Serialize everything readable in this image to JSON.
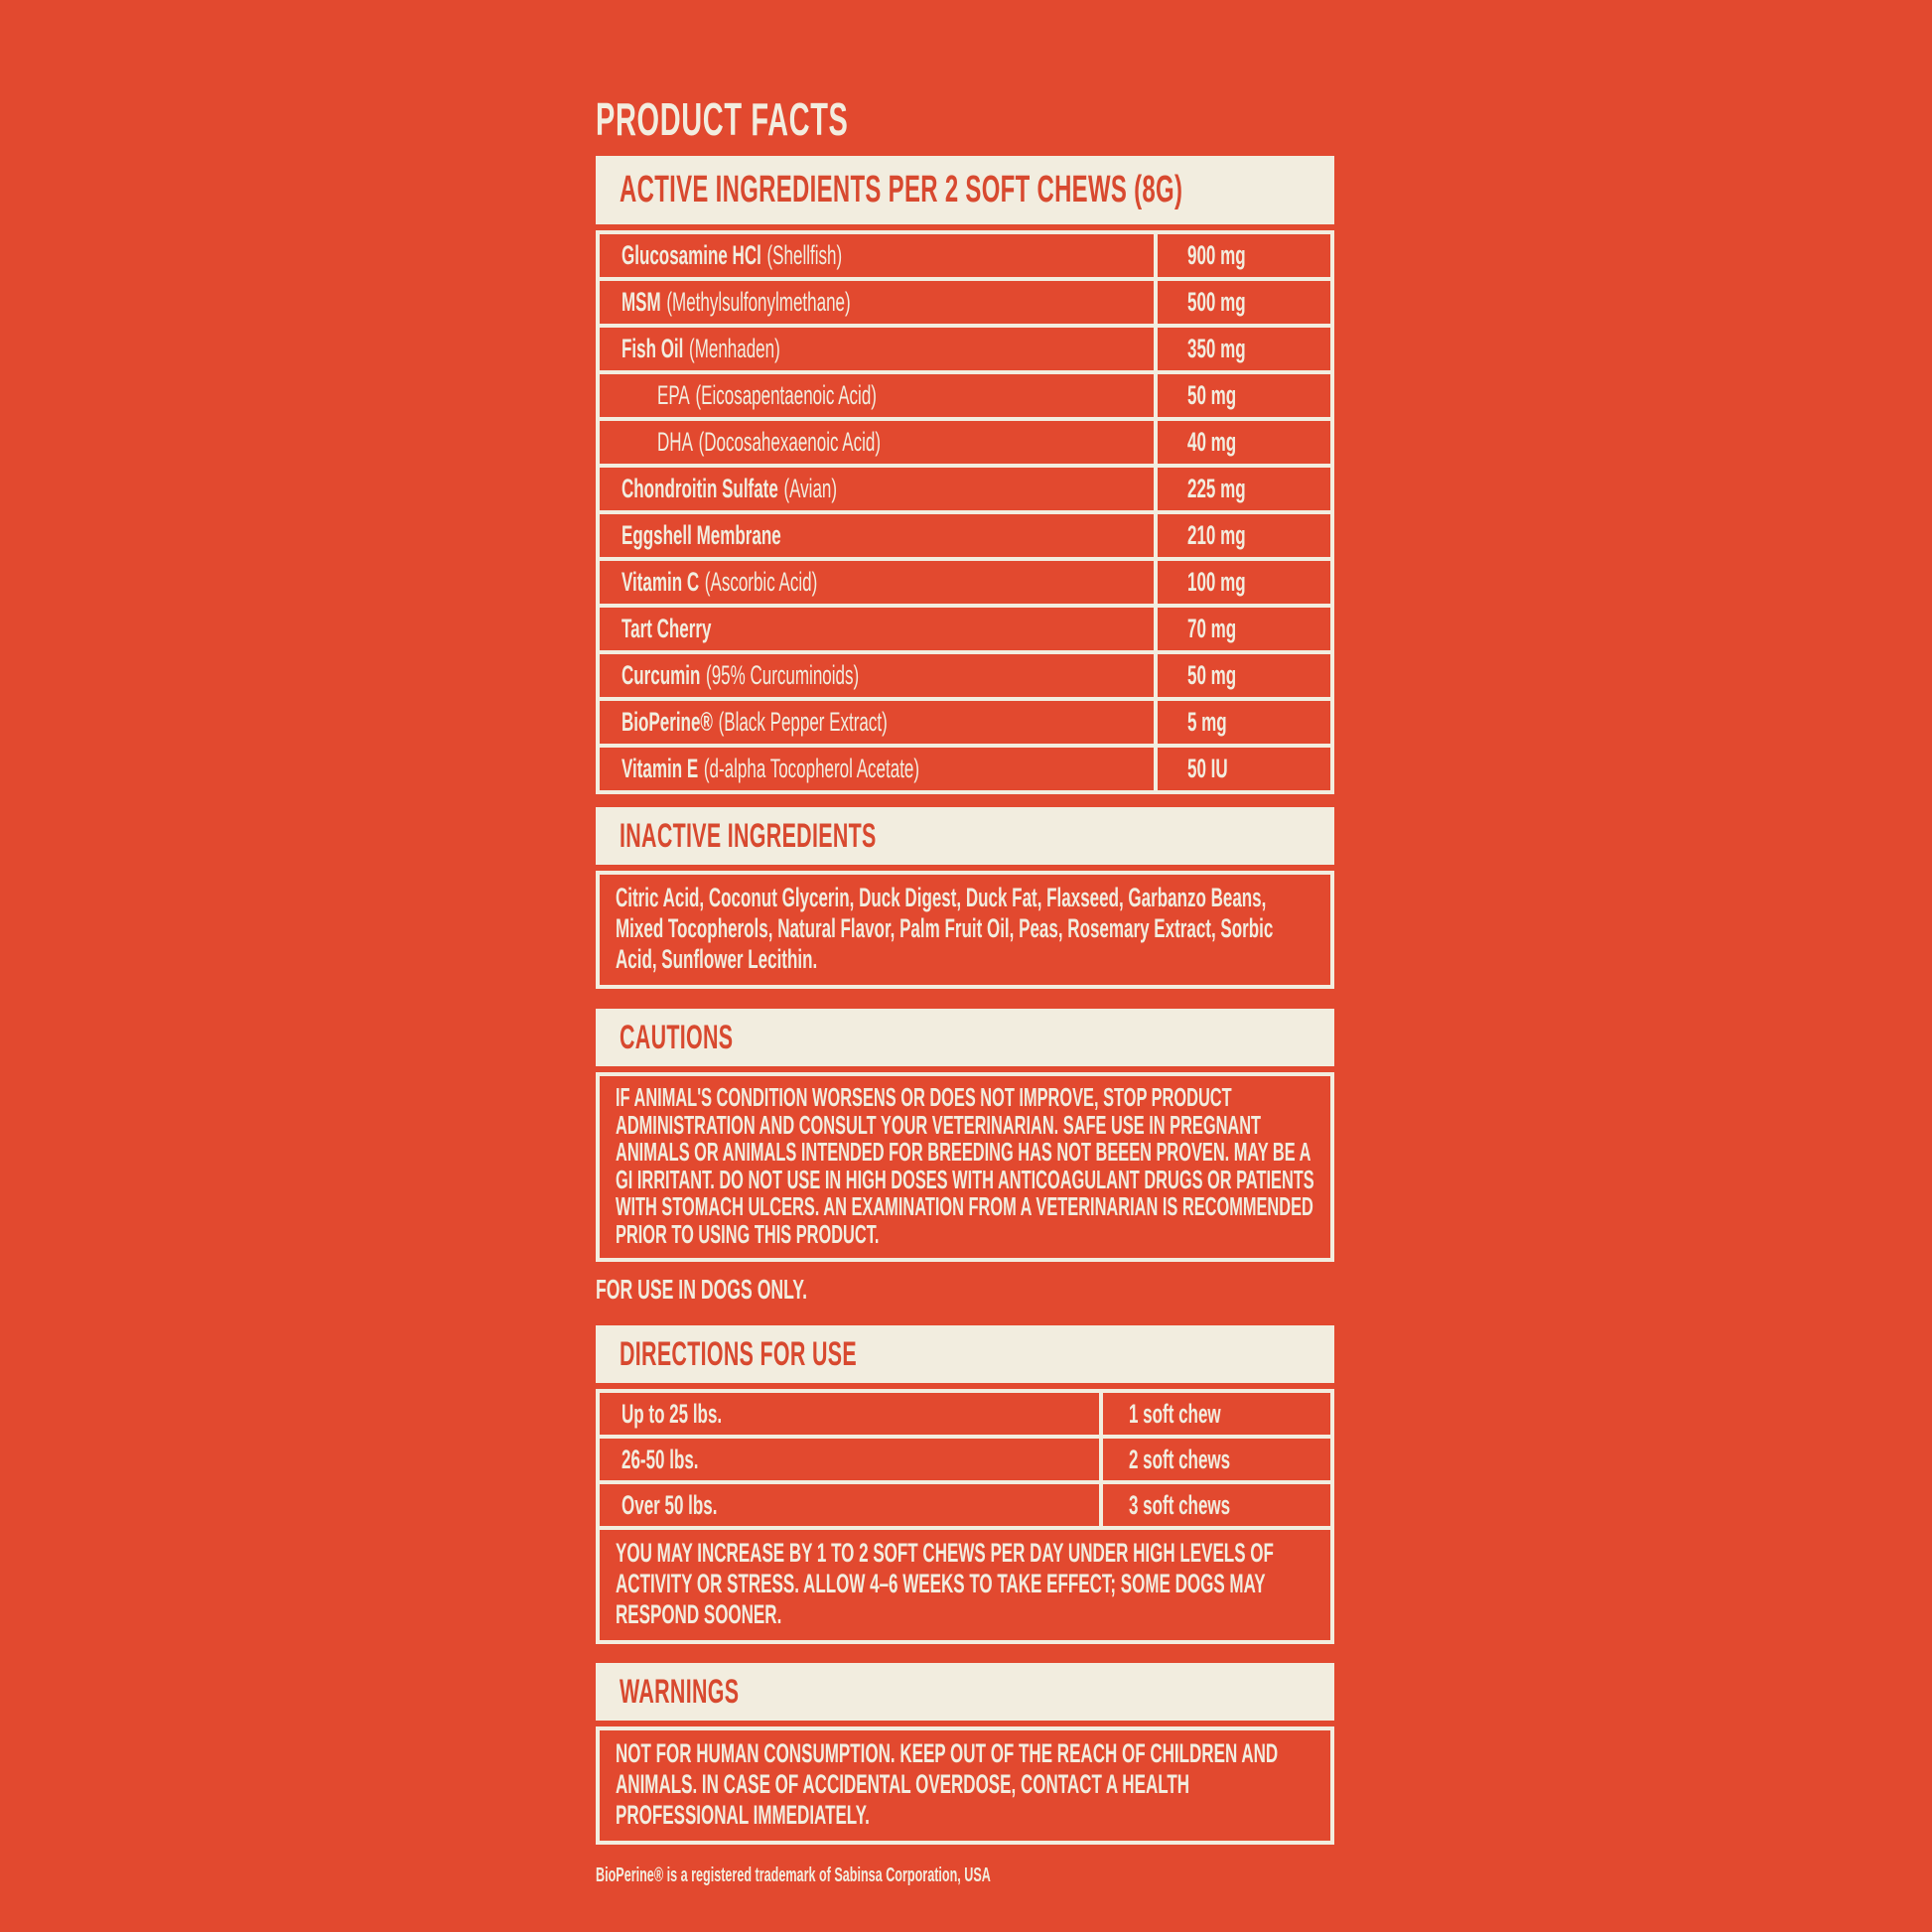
{
  "colors": {
    "background": "#E2492F",
    "panel_cream": "#F2EDDF",
    "red_text": "#D8492F",
    "cream_text": "#F2EDDF"
  },
  "title": "PRODUCT FACTS",
  "active": {
    "header": "ACTIVE INGREDIENTS PER 2 SOFT CHEWS (8G)",
    "rows": [
      {
        "name": "Glucosamine HCl",
        "detail": "(Shellfish)",
        "amount": "900 mg"
      },
      {
        "name": "MSM",
        "detail": "(Methylsulfonylmethane)",
        "amount": "500 mg"
      },
      {
        "name": "Fish Oil",
        "detail": "(Menhaden)",
        "amount": "350 mg"
      },
      {
        "name": "EPA",
        "detail": "(Eicosapentaenoic Acid)",
        "amount": "50 mg"
      },
      {
        "name": "DHA",
        "detail": "(Docosahexaenoic Acid)",
        "amount": "40 mg"
      },
      {
        "name": "Chondroitin Sulfate",
        "detail": "(Avian)",
        "amount": "225 mg"
      },
      {
        "name": "Eggshell Membrane",
        "detail": "",
        "amount": "210 mg"
      },
      {
        "name": "Vitamin C",
        "detail": "(Ascorbic Acid)",
        "amount": "100 mg"
      },
      {
        "name": "Tart Cherry",
        "detail": "",
        "amount": "70 mg"
      },
      {
        "name": "Curcumin",
        "detail": "(95% Curcuminoids)",
        "amount": "50 mg"
      },
      {
        "name": "BioPerine®",
        "detail": "(Black Pepper Extract)",
        "amount": "5 mg"
      },
      {
        "name": "Vitamin E",
        "detail": "(d-alpha Tocopherol Acetate)",
        "amount": "50 IU"
      }
    ]
  },
  "inactive": {
    "header": "INACTIVE INGREDIENTS",
    "body": "Citric Acid, Coconut Glycerin, Duck Digest, Duck Fat, Flaxseed, Garbanzo Beans, Mixed Tocopherols, Natural Flavor, Palm Fruit Oil, Peas, Rosemary Extract, Sorbic Acid, Sunflower Lecithin."
  },
  "cautions": {
    "header": "CAUTIONS",
    "body": "IF ANIMAL'S CONDITION WORSENS OR DOES NOT IMPROVE, STOP PRODUCT ADMINISTRATION AND CONSULT YOUR VETERINARIAN. SAFE USE IN PREGNANT ANIMALS OR ANIMALS INTENDED FOR BREEDING HAS NOT BEEEN PROVEN. MAY BE A GI IRRITANT. DO NOT USE IN HIGH DOSES WITH ANTICOAGULANT DRUGS OR PATIENTS WITH STOMACH ULCERS. AN EXAMINATION FROM A VETERINARIAN IS RECOMMENDED PRIOR TO USING THIS PRODUCT."
  },
  "for_use_note": "FOR USE IN DOGS ONLY.",
  "directions": {
    "header": "DIRECTIONS FOR USE",
    "rows": [
      {
        "weight": "Up to 25 lbs.",
        "dose": "1 soft chew"
      },
      {
        "weight": "26-50 lbs.",
        "dose": "2 soft chews"
      },
      {
        "weight": "Over 50 lbs.",
        "dose": "3 soft chews"
      }
    ],
    "note": "YOU MAY INCREASE BY 1 TO 2 SOFT CHEWS PER DAY UNDER HIGH LEVELS OF ACTIVITY OR STRESS. ALLOW 4–6 WEEKS TO TAKE EFFECT; SOME DOGS MAY RESPOND SOONER."
  },
  "warnings": {
    "header": "WARNINGS",
    "body": "NOT FOR HUMAN CONSUMPTION. KEEP OUT OF THE REACH OF CHILDREN AND ANIMALS. IN CASE OF ACCIDENTAL OVERDOSE, CONTACT A HEALTH PROFESSIONAL IMMEDIATELY."
  },
  "footnote": "BioPerine® is a registered trademark of Sabinsa Corporation, USA"
}
